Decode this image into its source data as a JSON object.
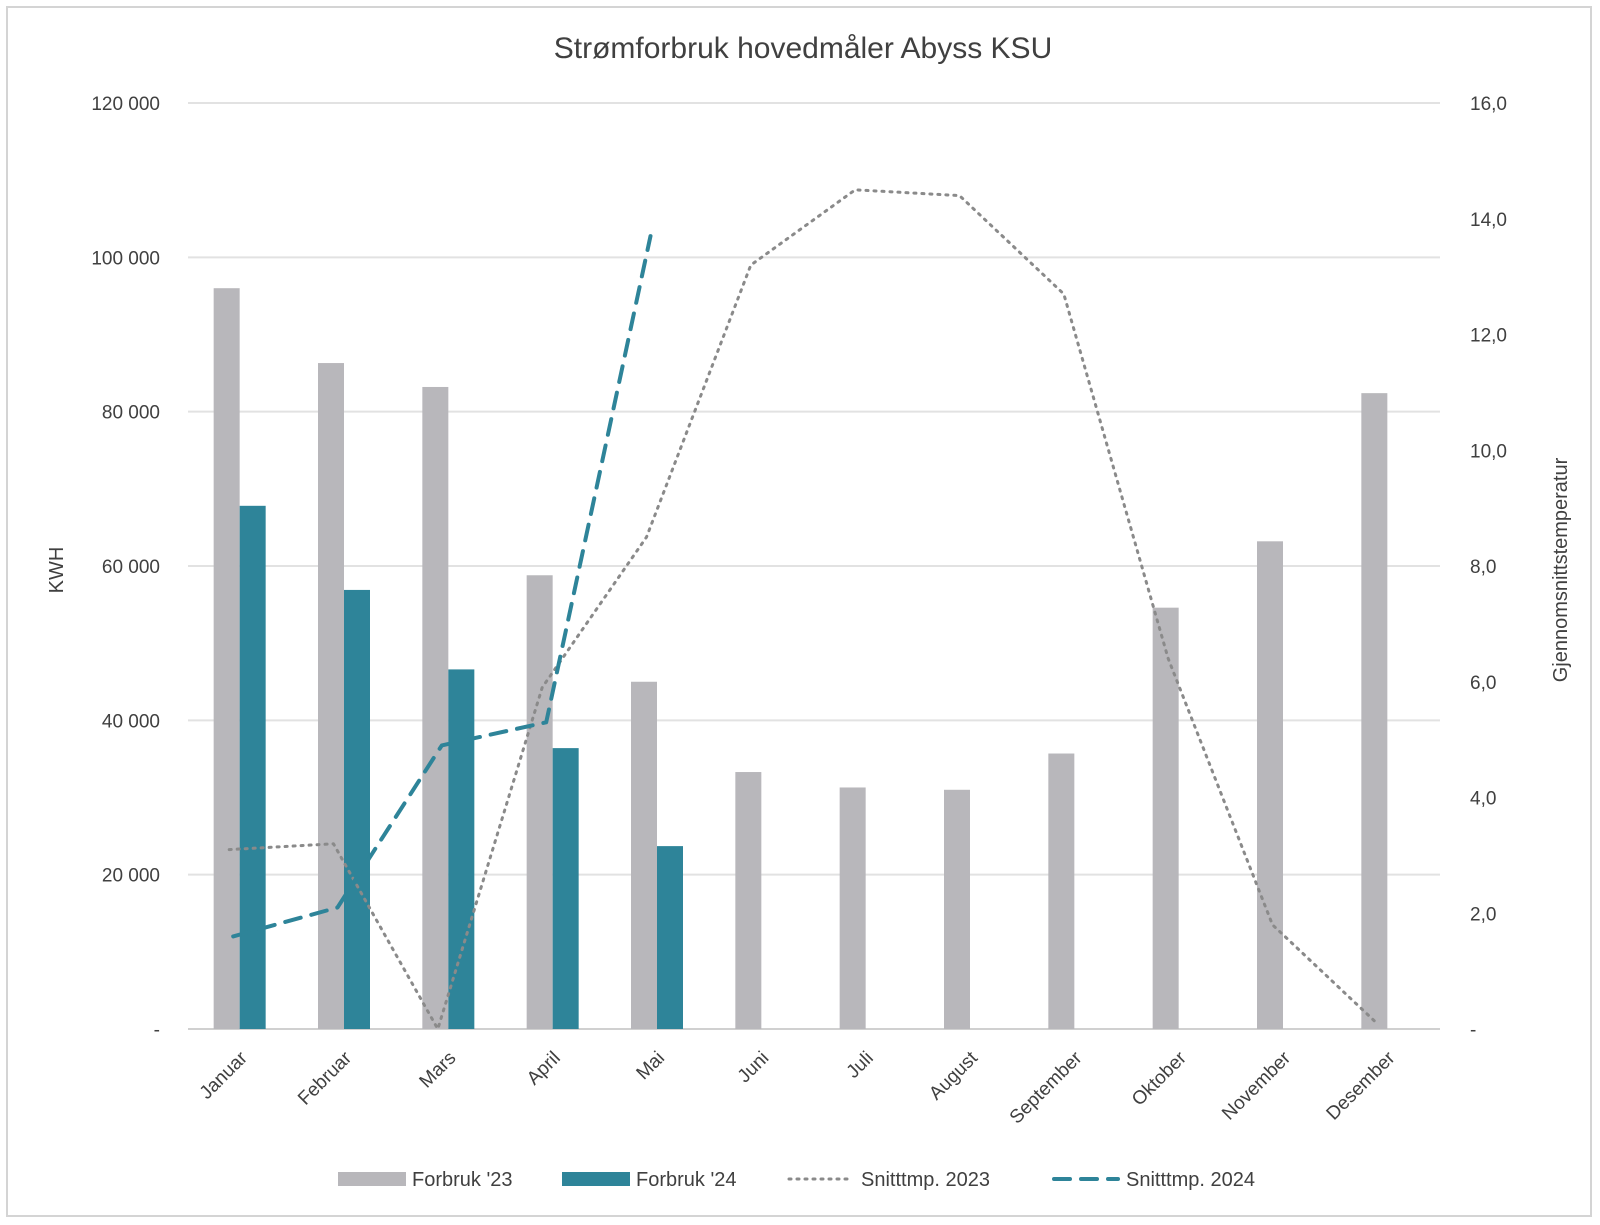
{
  "chart_data": {
    "type": "bar",
    "title": "Strømforbruk hovedmåler Abyss KSU",
    "ylabel": "KWH",
    "y2label": "Gjennomsnittstemperatur",
    "categories": [
      "Januar",
      "Februar",
      "Mars",
      "April",
      "Mai",
      "Juni",
      "Juli",
      "August",
      "September",
      "Oktober",
      "November",
      "Desember"
    ],
    "ylim": [
      0,
      120000
    ],
    "y2lim": [
      0,
      16
    ],
    "yticks": [
      "-",
      "20 000",
      "40 000",
      "60 000",
      "80 000",
      "100 000",
      "120 000"
    ],
    "y2ticks": [
      "-",
      "2,0",
      "4,0",
      "6,0",
      "8,0",
      "10,0",
      "12,0",
      "14,0",
      "16,0"
    ],
    "grid": true,
    "legend_position": "bottom",
    "series": [
      {
        "name": "Forbruk '23",
        "kind": "bar",
        "axis": "left",
        "color": "#b8b7bb",
        "values": [
          96000,
          86300,
          83200,
          58800,
          45000,
          33300,
          31300,
          31000,
          35700,
          54600,
          63200,
          82400
        ]
      },
      {
        "name": "Forbruk '24",
        "kind": "bar",
        "axis": "left",
        "color": "#2e8499",
        "values": [
          67800,
          56900,
          46600,
          36400,
          23700,
          null,
          null,
          null,
          null,
          null,
          null,
          null
        ]
      },
      {
        "name": "Snitttmp. 2023",
        "kind": "line",
        "style": "dotted",
        "axis": "right",
        "color": "#8a8a8a",
        "values": [
          3.1,
          3.2,
          0.0,
          5.9,
          8.5,
          13.2,
          14.5,
          14.4,
          12.7,
          6.4,
          1.8,
          0.1
        ]
      },
      {
        "name": "Snitttmp. 2024",
        "kind": "line",
        "style": "dashed",
        "axis": "right",
        "color": "#2e8499",
        "values": [
          1.6,
          2.1,
          4.9,
          5.3,
          13.7,
          null,
          null,
          null,
          null,
          null,
          null,
          null
        ]
      }
    ]
  }
}
